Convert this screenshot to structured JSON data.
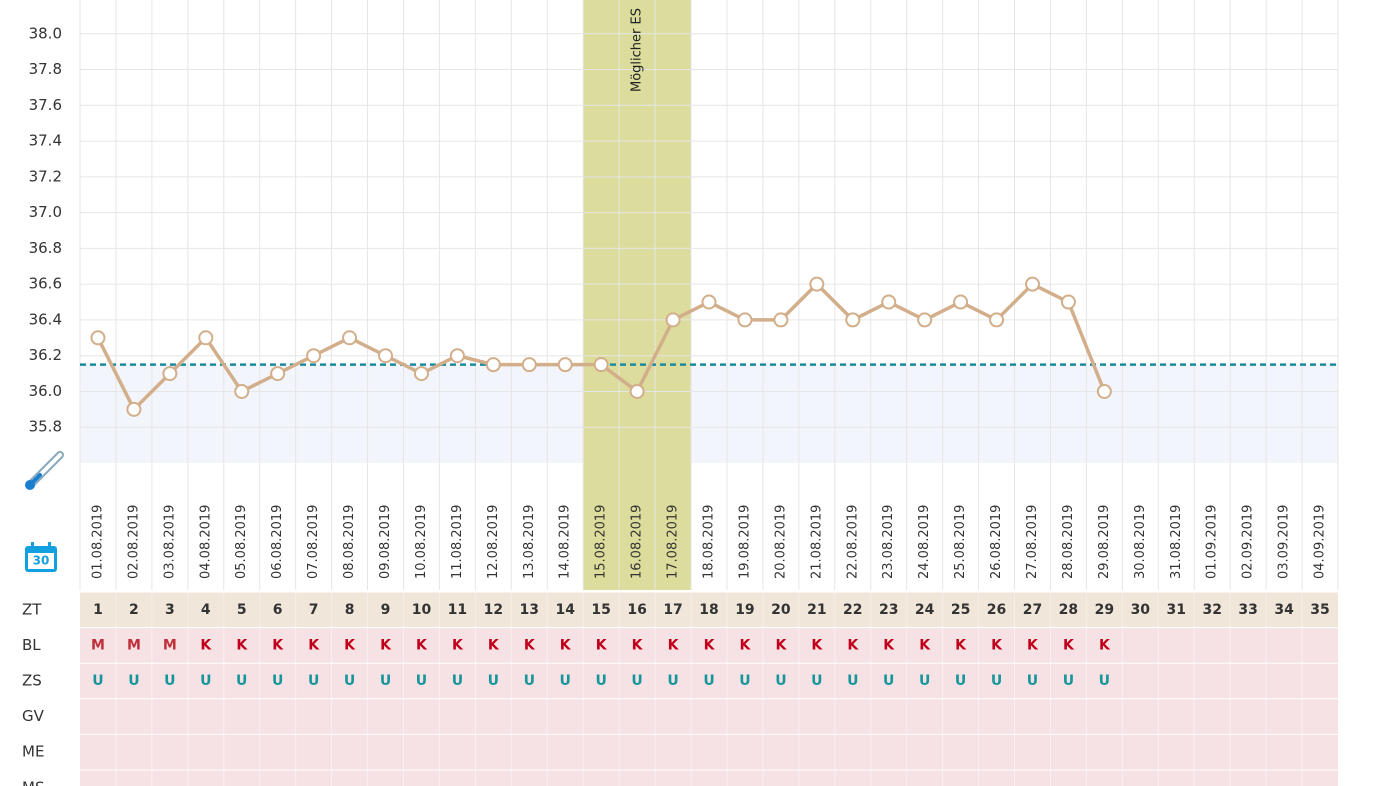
{
  "chart_data": {
    "type": "line",
    "categories": [
      "01.08.2019",
      "02.08.2019",
      "03.08.2019",
      "04.08.2019",
      "05.08.2019",
      "06.08.2019",
      "07.08.2019",
      "08.08.2019",
      "09.08.2019",
      "10.08.2019",
      "11.08.2019",
      "12.08.2019",
      "13.08.2019",
      "14.08.2019",
      "15.08.2019",
      "16.08.2019",
      "17.08.2019",
      "18.08.2019",
      "19.08.2019",
      "20.08.2019",
      "21.08.2019",
      "22.08.2019",
      "23.08.2019",
      "24.08.2019",
      "25.08.2019",
      "26.08.2019",
      "27.08.2019",
      "28.08.2019",
      "29.08.2019",
      "30.08.2019",
      "31.08.2019",
      "01.09.2019",
      "02.09.2019",
      "03.09.2019",
      "04.09.2019"
    ],
    "series": [
      {
        "color": "#d2ae8a",
        "values": [
          36.3,
          35.9,
          36.1,
          36.3,
          36.0,
          36.1,
          36.2,
          36.3,
          36.2,
          36.1,
          36.2,
          36.15,
          36.15,
          36.15,
          36.15,
          36.0,
          36.4,
          36.5,
          36.4,
          36.4,
          36.6,
          36.4,
          36.5,
          36.4,
          36.5,
          36.4,
          36.6,
          36.5,
          36.0,
          null,
          null,
          null,
          null,
          null,
          null
        ]
      }
    ],
    "ylim": [
      35.6,
      38.2
    ],
    "yticks": [
      {
        "value": 35.8,
        "label": "35.8"
      },
      {
        "value": 36,
        "label": "36.0"
      },
      36.2,
      36.4,
      36.6,
      36.8,
      {
        "value": 37,
        "label": "37.0"
      },
      37.2,
      37.4,
      37.6,
      37.8,
      {
        "value": 38,
        "label": "38.0"
      }
    ],
    "grid": true,
    "coverline": 36.15,
    "coverline_color": "#1a8aa0",
    "highlight": [
      14,
      16
    ],
    "highlight_color": "#dcdc9c",
    "annotation": "Möglicher ES"
  },
  "rows": [
    {
      "label": "ZT",
      "cells": [
        1,
        2,
        3,
        4,
        5,
        6,
        7,
        8,
        9,
        10,
        11,
        12,
        13,
        14,
        15,
        16,
        17,
        18,
        19,
        20,
        21,
        22,
        23,
        24,
        25,
        26,
        27,
        28,
        29,
        30,
        31,
        32,
        33,
        34,
        35
      ]
    },
    {
      "label": "BL",
      "cells": [
        "M",
        "M",
        "M",
        "K",
        "K",
        "K",
        "K",
        "K",
        "K",
        "K",
        "K",
        "K",
        "K",
        "K",
        "K",
        "K",
        "K",
        "K",
        "K",
        "K",
        "K",
        "K",
        "K",
        "K",
        "K",
        "K",
        "K",
        "K",
        "K"
      ]
    },
    {
      "label": "ZS",
      "cells": [
        "U",
        "U",
        "U",
        "U",
        "U",
        "U",
        "U",
        "U",
        "U",
        "U",
        "U",
        "U",
        "U",
        "U",
        "U",
        "U",
        "U",
        "U",
        "U",
        "U",
        "U",
        "U",
        "U",
        "U",
        "U",
        "U",
        "U",
        "U",
        "U"
      ]
    },
    {
      "label": "GV",
      "cells": []
    },
    {
      "label": "ME",
      "cells": []
    },
    {
      "label": "MS",
      "cells": []
    }
  ]
}
